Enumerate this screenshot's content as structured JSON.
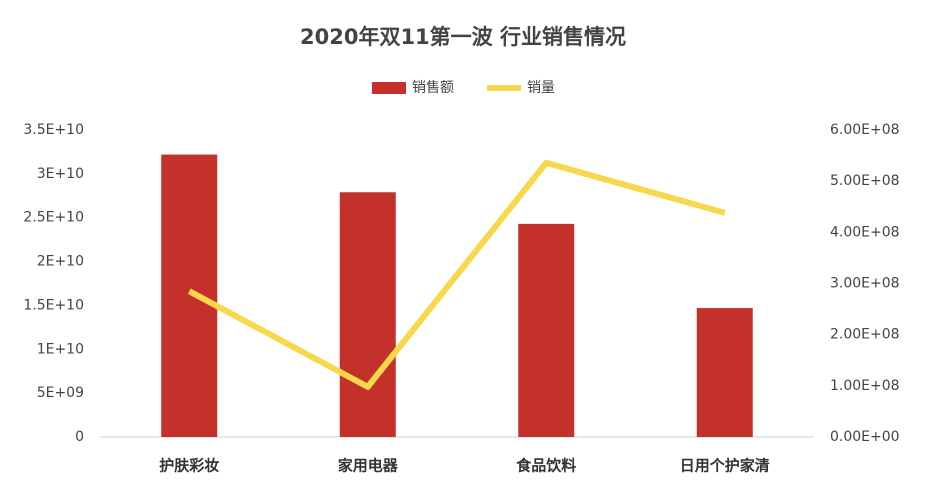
{
  "chart_data": {
    "type": "bar",
    "title": "2020年双11第一波  行业销售情况",
    "categories": [
      "护肤彩妆",
      "家用电器",
      "食品饮料",
      "日用个护家清"
    ],
    "series": [
      {
        "name": "销售额",
        "color": "#c3312a",
        "type": "bar",
        "values": [
          32200000000,
          27900000000,
          24300000000,
          14700000000
        ]
      },
      {
        "name": "销量",
        "color": "#f7d84a",
        "type": "line",
        "axis": "y2",
        "values": [
          285000000,
          98000000,
          536000000,
          438000000
        ]
      }
    ],
    "ylim": [
      0,
      35000000000
    ],
    "yticks": [
      0,
      {
        "value": 5000000000,
        "label": "5E+09"
      },
      {
        "value": 10000000000,
        "label": "1E+10"
      },
      {
        "value": 15000000000,
        "label": "1.5E+10"
      },
      {
        "value": 20000000000,
        "label": "2E+10"
      },
      {
        "value": 25000000000,
        "label": "2.5E+10"
      },
      {
        "value": 30000000000,
        "label": "3E+10"
      },
      {
        "value": 35000000000,
        "label": "3.5E+10"
      }
    ],
    "y2lim": [
      0,
      600000000
    ],
    "y2ticks": [
      {
        "value": 0,
        "label": "0.00E+00"
      },
      {
        "value": 100000000,
        "label": "1.00E+08"
      },
      {
        "value": 200000000,
        "label": "2.00E+08"
      },
      {
        "value": 300000000,
        "label": "3.00E+08"
      },
      {
        "value": 400000000,
        "label": "4.00E+08"
      },
      {
        "value": 500000000,
        "label": "5.00E+08"
      },
      {
        "value": 600000000,
        "label": "6.00E+08"
      }
    ],
    "legend": "top",
    "grid": false
  }
}
